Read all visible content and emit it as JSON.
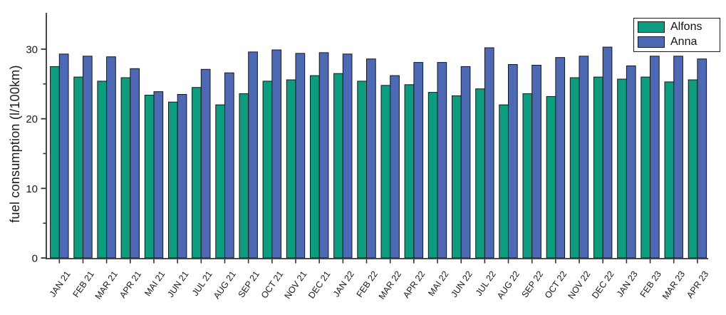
{
  "chart_data": {
    "type": "bar",
    "title": "",
    "xlabel": "",
    "ylabel": "fuel consumption (l/100km)",
    "ylim": [
      0,
      35.2
    ],
    "yticks_major": [
      0,
      10,
      20,
      30
    ],
    "yticks_minor": [
      5,
      15,
      25
    ],
    "grid": false,
    "legend_position": "top-right",
    "bar_edge_color": "#15151f",
    "axis_color": "#333333",
    "categories": [
      "JAN 21",
      "FEB 21",
      "MAR 21",
      "APR 21",
      "MAI 21",
      "JUN 21",
      "JUL 21",
      "AUG 21",
      "SEP 21",
      "OCT 21",
      "NOV 21",
      "DEC 21",
      "JAN 22",
      "FEB 22",
      "MAR 22",
      "APR 22",
      "MAI 22",
      "JUN 22",
      "JUL 22",
      "AUG 22",
      "SEP 22",
      "OCT 22",
      "NOV 22",
      "DEC 22",
      "JAN 23",
      "FEB 23",
      "MAR 23",
      "APR 23"
    ],
    "series": [
      {
        "name": "Alfons",
        "color": "#0d9c7d",
        "values": [
          27.5,
          26.0,
          25.4,
          25.9,
          23.4,
          22.4,
          24.5,
          22.0,
          23.6,
          25.4,
          25.6,
          26.2,
          26.5,
          25.4,
          24.8,
          24.9,
          23.8,
          23.3,
          24.3,
          22.0,
          23.6,
          23.2,
          25.9,
          26.0,
          25.7,
          26.0,
          25.3,
          25.6
        ]
      },
      {
        "name": "Anna",
        "color": "#4d69b3",
        "values": [
          29.3,
          29.0,
          28.9,
          27.2,
          23.9,
          23.5,
          27.1,
          26.6,
          29.6,
          29.9,
          29.4,
          29.5,
          29.3,
          28.6,
          26.2,
          28.1,
          28.1,
          27.5,
          30.2,
          27.8,
          27.7,
          28.8,
          29.0,
          30.3,
          27.6,
          29.0,
          29.0,
          28.6
        ]
      }
    ]
  }
}
